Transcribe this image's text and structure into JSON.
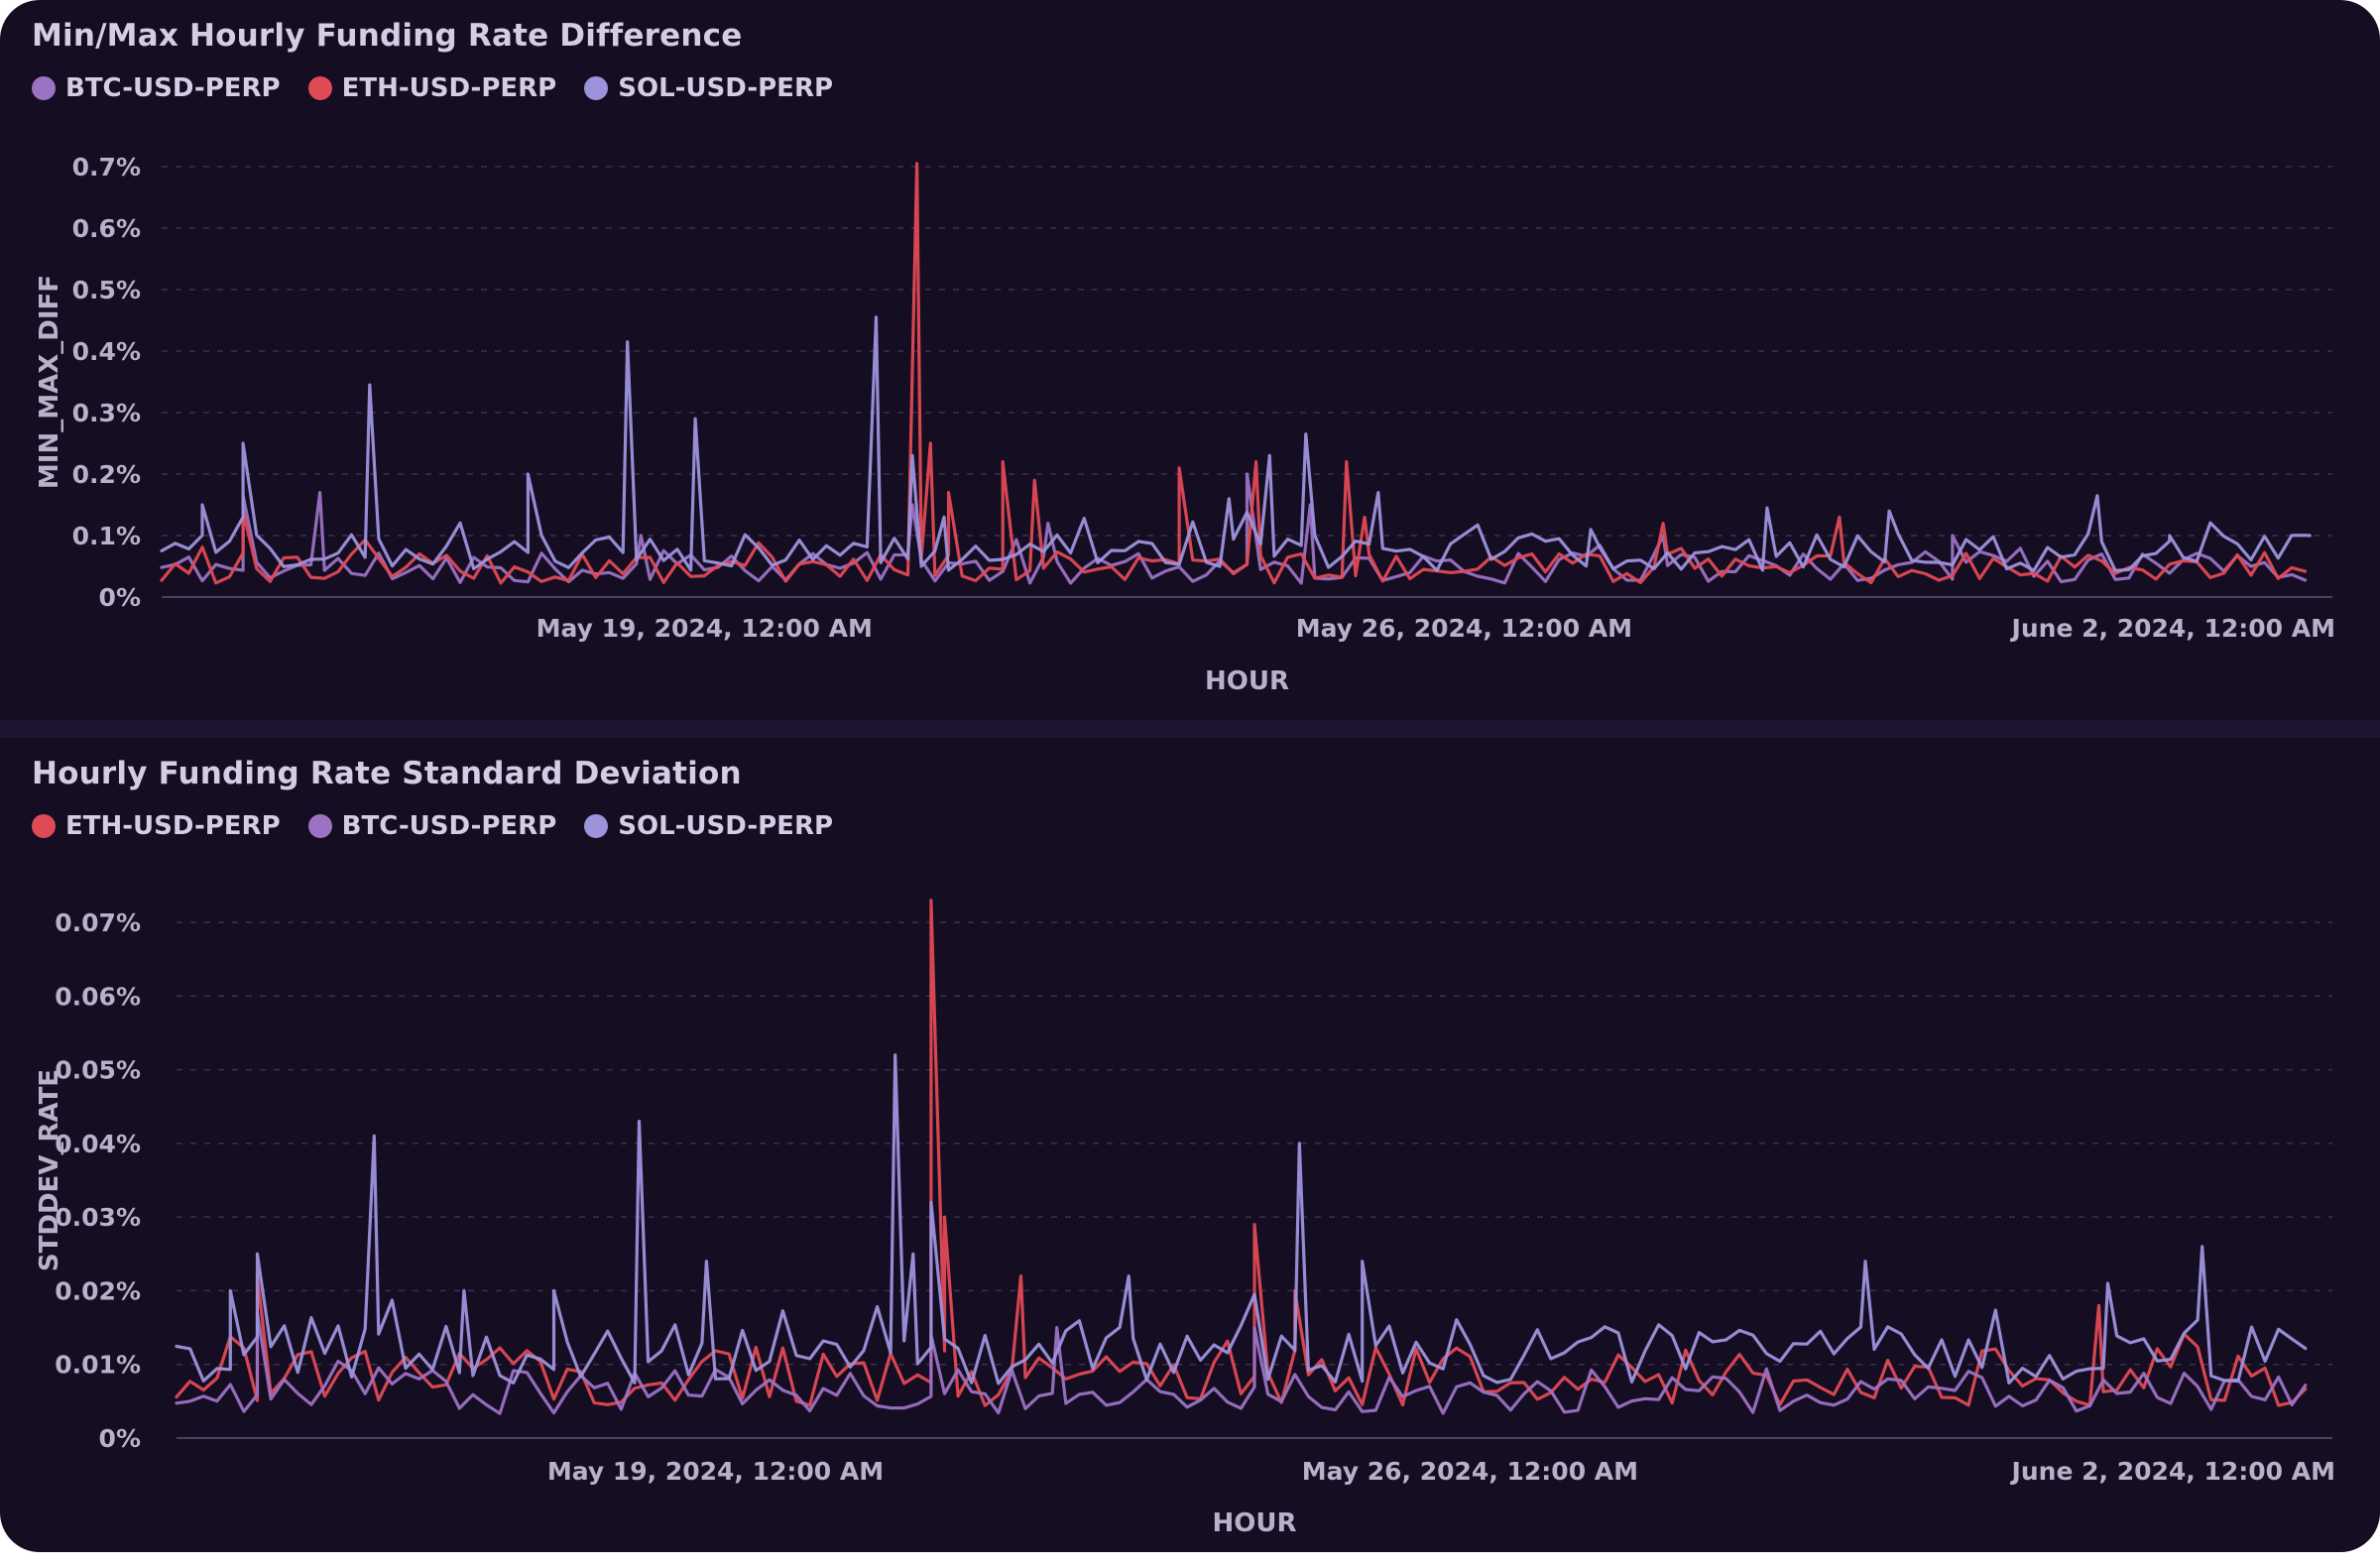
{
  "colors": {
    "background": "#150d21",
    "grid": "#3a3150",
    "axis": "#4a4160"
  },
  "chart_data": [
    {
      "type": "line",
      "title": "Min/Max Hourly Funding Rate Difference",
      "xlabel": "HOUR",
      "ylabel": "MIN_MAX_DIFF",
      "x_range": [
        "2024-05-14T00:00",
        "2024-06-03T00:00"
      ],
      "ylim": [
        0,
        0.7
      ],
      "y_ticks": [
        {
          "value": 0,
          "label": "0%"
        },
        {
          "value": 0.1,
          "label": "0.1%"
        },
        {
          "value": 0.2,
          "label": "0.2%"
        },
        {
          "value": 0.3,
          "label": "0.3%"
        },
        {
          "value": 0.4,
          "label": "0.4%"
        },
        {
          "value": 0.5,
          "label": "0.5%"
        },
        {
          "value": 0.6,
          "label": "0.6%"
        },
        {
          "value": 0.7,
          "label": "0.7%"
        }
      ],
      "x_ticks": [
        {
          "value": "2024-05-19T00:00",
          "label": "May 19, 2024, 12:00 AM"
        },
        {
          "value": "2024-05-26T00:00",
          "label": "May 26, 2024, 12:00 AM"
        },
        {
          "value": "2024-06-02T00:00",
          "label": "June 2, 2024, 12:00 AM"
        }
      ],
      "grid": true,
      "legend_position": "top-left",
      "series": [
        {
          "name": "BTC-USD-PERP",
          "color": "#9b72c4",
          "baseline": 0.045,
          "noise": 0.025,
          "seed": 11,
          "points": [
            [
              "2024-05-14T18:00",
              0.165
            ],
            [
              "2024-05-15T11:00",
              0.17
            ],
            [
              "2024-05-18T10:00",
              0.1
            ],
            [
              "2024-05-20T22:00",
              0.15
            ],
            [
              "2024-05-22T04:00",
              0.12
            ],
            [
              "2024-05-24T00:00",
              0.2
            ],
            [
              "2024-05-24T14:00",
              0.15
            ],
            [
              "2024-05-27T20:00",
              0.1
            ],
            [
              "2024-05-30T12:00",
              0.1
            ]
          ]
        },
        {
          "name": "ETH-USD-PERP",
          "color": "#e04a55",
          "baseline": 0.045,
          "noise": 0.025,
          "seed": 23,
          "points": [
            [
              "2024-05-14T18:00",
              0.14
            ],
            [
              "2024-05-20T23:00",
              0.705
            ],
            [
              "2024-05-21T02:00",
              0.25
            ],
            [
              "2024-05-21T06:00",
              0.17
            ],
            [
              "2024-05-21T18:00",
              0.22
            ],
            [
              "2024-05-22T01:00",
              0.19
            ],
            [
              "2024-05-23T09:00",
              0.21
            ],
            [
              "2024-05-24T02:00",
              0.22
            ],
            [
              "2024-05-24T22:00",
              0.22
            ],
            [
              "2024-05-25T02:00",
              0.13
            ],
            [
              "2024-05-27T20:00",
              0.12
            ],
            [
              "2024-05-29T11:00",
              0.13
            ]
          ]
        },
        {
          "name": "SOL-USD-PERP",
          "color": "#9d93dd",
          "baseline": 0.07,
          "noise": 0.03,
          "seed": 37,
          "points": [
            [
              "2024-05-14T09:00",
              0.15
            ],
            [
              "2024-05-14T18:00",
              0.25
            ],
            [
              "2024-05-15T22:00",
              0.345
            ],
            [
              "2024-05-17T09:00",
              0.2
            ],
            [
              "2024-05-18T07:00",
              0.415
            ],
            [
              "2024-05-18T22:00",
              0.29
            ],
            [
              "2024-05-20T14:00",
              0.455
            ],
            [
              "2024-05-20T22:00",
              0.23
            ],
            [
              "2024-05-21T05:00",
              0.13
            ],
            [
              "2024-05-22T11:00",
              0.11
            ],
            [
              "2024-05-23T20:00",
              0.16
            ],
            [
              "2024-05-24T05:00",
              0.23
            ],
            [
              "2024-05-24T13:00",
              0.265
            ],
            [
              "2024-05-25T05:00",
              0.17
            ],
            [
              "2024-05-27T04:00",
              0.11
            ],
            [
              "2024-05-28T19:00",
              0.145
            ],
            [
              "2024-05-29T22:00",
              0.14
            ],
            [
              "2024-05-31T20:00",
              0.165
            ],
            [
              "2024-06-01T12:00",
              0.1
            ],
            [
              "2024-06-02T19:00",
              0.1
            ]
          ]
        }
      ]
    },
    {
      "type": "line",
      "title": "Hourly Funding Rate Standard Deviation",
      "xlabel": "HOUR",
      "ylabel": "STDDEV_RATE",
      "x_range": [
        "2024-05-14T00:00",
        "2024-06-03T00:00"
      ],
      "ylim": [
        0,
        0.07
      ],
      "y_ticks": [
        {
          "value": 0,
          "label": "0%"
        },
        {
          "value": 0.01,
          "label": "0.01%"
        },
        {
          "value": 0.02,
          "label": "0.02%"
        },
        {
          "value": 0.03,
          "label": "0.03%"
        },
        {
          "value": 0.04,
          "label": "0.04%"
        },
        {
          "value": 0.05,
          "label": "0.05%"
        },
        {
          "value": 0.06,
          "label": "0.06%"
        },
        {
          "value": 0.07,
          "label": "0.07%"
        }
      ],
      "x_ticks": [
        {
          "value": "2024-05-19T00:00",
          "label": "May 19, 2024, 12:00 AM"
        },
        {
          "value": "2024-05-26T00:00",
          "label": "May 26, 2024, 12:00 AM"
        },
        {
          "value": "2024-06-02T00:00",
          "label": "June 2, 2024, 12:00 AM"
        }
      ],
      "grid": true,
      "legend_position": "top-left",
      "series": [
        {
          "name": "ETH-USD-PERP",
          "color": "#e04a55",
          "baseline": 0.008,
          "noise": 0.004,
          "seed": 51,
          "points": [
            [
              "2024-05-14T18:00",
              0.022
            ],
            [
              "2024-05-21T00:00",
              0.073
            ],
            [
              "2024-05-21T03:00",
              0.03
            ],
            [
              "2024-05-21T20:00",
              0.022
            ],
            [
              "2024-05-24T00:00",
              0.029
            ],
            [
              "2024-05-24T09:00",
              0.02
            ],
            [
              "2024-05-31T20:00",
              0.018
            ]
          ]
        },
        {
          "name": "BTC-USD-PERP",
          "color": "#9b72c4",
          "baseline": 0.006,
          "noise": 0.003,
          "seed": 63,
          "points": [
            [
              "2024-05-14T18:00",
              0.017
            ],
            [
              "2024-05-21T00:00",
              0.014
            ],
            [
              "2024-05-22T04:00",
              0.015
            ],
            [
              "2024-05-24T00:00",
              0.015
            ]
          ]
        },
        {
          "name": "SOL-USD-PERP",
          "color": "#9d93dd",
          "baseline": 0.011,
          "noise": 0.004,
          "seed": 79,
          "points": [
            [
              "2024-05-14T12:00",
              0.02
            ],
            [
              "2024-05-14T18:00",
              0.025
            ],
            [
              "2024-05-15T20:00",
              0.041
            ],
            [
              "2024-05-16T16:00",
              0.02
            ],
            [
              "2024-05-17T12:00",
              0.02
            ],
            [
              "2024-05-18T07:00",
              0.043
            ],
            [
              "2024-05-18T22:00",
              0.024
            ],
            [
              "2024-05-20T16:00",
              0.052
            ],
            [
              "2024-05-20T20:00",
              0.025
            ],
            [
              "2024-05-21T00:00",
              0.032
            ],
            [
              "2024-05-22T20:00",
              0.022
            ],
            [
              "2024-05-24T10:00",
              0.04
            ],
            [
              "2024-05-25T00:00",
              0.024
            ],
            [
              "2024-05-29T16:00",
              0.024
            ],
            [
              "2024-05-31T22:00",
              0.021
            ],
            [
              "2024-06-01T19:00",
              0.026
            ]
          ]
        }
      ]
    }
  ]
}
